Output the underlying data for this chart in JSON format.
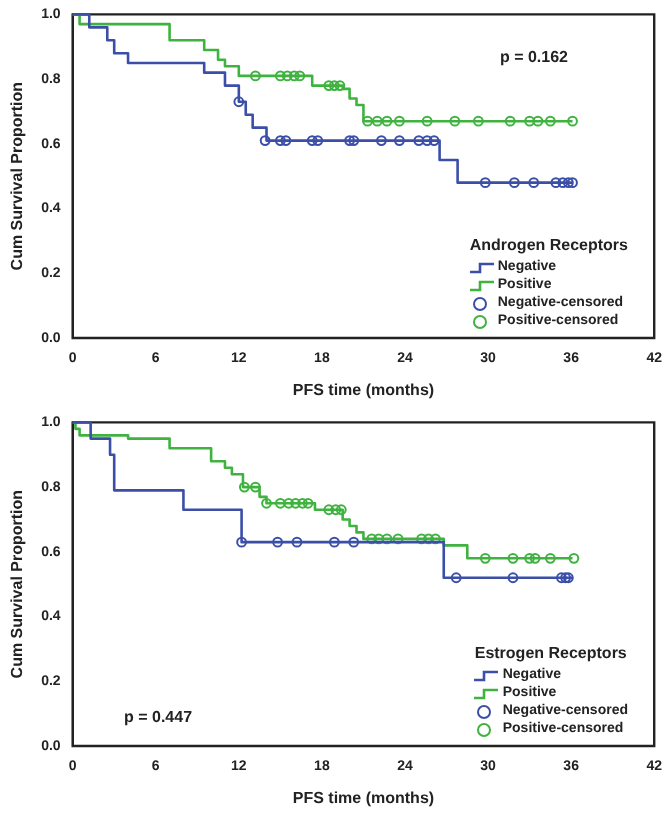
{
  "chart_data": [
    {
      "type": "step",
      "xlabel": "PFS time (months)",
      "ylabel": "Cum Survival Proportion",
      "legend_title": "Androgen Receptors",
      "legend": "bottom right",
      "annotations": [
        "p = 0.162"
      ],
      "xlim": [
        0,
        42
      ],
      "xticks": [
        0,
        6,
        12,
        18,
        24,
        30,
        36,
        42
      ],
      "ylim": [
        0,
        1
      ],
      "yticks": [
        {
          "value": 0,
          "label": "0.0"
        },
        {
          "value": 0.2,
          "label": "0.2"
        },
        {
          "value": 0.4,
          "label": "0.4"
        },
        {
          "value": 0.6,
          "label": "0.6"
        },
        {
          "value": 0.8,
          "label": "0.8"
        },
        {
          "value": 1,
          "label": "1.0"
        }
      ],
      "grid": false,
      "series": [
        {
          "name": "Negative",
          "color": "#3b4fa8",
          "x": [
            0,
            1.2,
            2.5,
            3,
            4,
            9.5,
            11,
            12,
            12.5,
            13,
            14,
            26.5,
            27.8,
            36.1
          ],
          "values": [
            1,
            0.96,
            0.92,
            0.88,
            0.85,
            0.82,
            0.78,
            0.73,
            0.69,
            0.65,
            0.61,
            0.55,
            0.48,
            0.48
          ]
        },
        {
          "name": "Positive",
          "color": "#3fb23f",
          "x": [
            0,
            0.5,
            7,
            9.5,
            10.5,
            11,
            12,
            17.3,
            19.5,
            20,
            20.5,
            21,
            36.1
          ],
          "values": [
            1,
            0.97,
            0.92,
            0.89,
            0.86,
            0.84,
            0.81,
            0.78,
            0.77,
            0.74,
            0.72,
            0.67,
            0.67
          ]
        },
        {
          "name": "Negative-censored",
          "type": "scatter",
          "marker": "circle",
          "color": "#3b4fa8",
          "x": [
            12,
            13.9,
            15,
            15.4,
            17.3,
            17.7,
            20,
            20.3,
            22.3,
            23.6,
            25,
            25.6,
            26.1,
            29.8,
            31.9,
            33.3,
            34.9,
            35.4,
            35.8,
            36.1
          ],
          "values": [
            0.73,
            0.61,
            0.61,
            0.61,
            0.61,
            0.61,
            0.61,
            0.61,
            0.61,
            0.61,
            0.61,
            0.61,
            0.61,
            0.48,
            0.48,
            0.48,
            0.48,
            0.48,
            0.48,
            0.48
          ]
        },
        {
          "name": "Positive-censored",
          "type": "scatter",
          "marker": "circle",
          "color": "#3fb23f",
          "x": [
            13.2,
            15,
            15.5,
            16,
            16.4,
            18.5,
            18.9,
            19.3,
            21.3,
            22,
            22.7,
            23.6,
            25.6,
            27.6,
            29.3,
            31.6,
            33,
            33.6,
            34.5,
            36.1
          ],
          "values": [
            0.81,
            0.81,
            0.81,
            0.81,
            0.81,
            0.78,
            0.78,
            0.78,
            0.67,
            0.67,
            0.67,
            0.67,
            0.67,
            0.67,
            0.67,
            0.67,
            0.67,
            0.67,
            0.67,
            0.67
          ]
        }
      ]
    },
    {
      "type": "step",
      "xlabel": "PFS time (months)",
      "ylabel": "Cum Survival Proportion",
      "legend_title": "Estrogen Receptors",
      "legend": "bottom right",
      "annotations": [
        "p = 0.447"
      ],
      "xlim": [
        0,
        42
      ],
      "xticks": [
        0,
        6,
        12,
        18,
        24,
        30,
        36,
        42
      ],
      "ylim": [
        0,
        1
      ],
      "yticks": [
        {
          "value": 0,
          "label": "0.0"
        },
        {
          "value": 0.2,
          "label": "0.2"
        },
        {
          "value": 0.4,
          "label": "0.4"
        },
        {
          "value": 0.6,
          "label": "0.6"
        },
        {
          "value": 0.8,
          "label": "0.8"
        },
        {
          "value": 1,
          "label": "1.0"
        }
      ],
      "grid": false,
      "series": [
        {
          "name": "Negative",
          "color": "#3b4fa8",
          "x": [
            0,
            1.3,
            2.7,
            3,
            8,
            12.2,
            26.8,
            36.1
          ],
          "values": [
            1,
            0.95,
            0.9,
            0.79,
            0.73,
            0.63,
            0.52,
            0.52
          ]
        },
        {
          "name": "Positive",
          "color": "#3fb23f",
          "x": [
            0,
            0.2,
            0.5,
            4,
            7,
            10,
            11,
            11.5,
            12.3,
            13.5,
            14,
            17.5,
            19.5,
            20,
            20.5,
            21,
            26.8,
            28.5,
            36.1
          ],
          "values": [
            1,
            0.98,
            0.96,
            0.95,
            0.92,
            0.88,
            0.86,
            0.84,
            0.8,
            0.77,
            0.75,
            0.73,
            0.7,
            0.68,
            0.66,
            0.64,
            0.62,
            0.58,
            0.58
          ]
        },
        {
          "name": "Negative-censored",
          "type": "scatter",
          "marker": "circle",
          "color": "#3b4fa8",
          "x": [
            12.2,
            14.8,
            16.2,
            18.9,
            20.3,
            27.7,
            31.8,
            35.3,
            35.6,
            35.8
          ],
          "values": [
            0.63,
            0.63,
            0.63,
            0.63,
            0.63,
            0.52,
            0.52,
            0.52,
            0.52,
            0.52
          ]
        },
        {
          "name": "Positive-censored",
          "type": "scatter",
          "marker": "circle",
          "color": "#3fb23f",
          "x": [
            12.4,
            13.2,
            14,
            15,
            15.6,
            16.1,
            16.6,
            17,
            18.5,
            19,
            19.4,
            21.6,
            22.1,
            22.7,
            23.5,
            25.2,
            25.7,
            26.2,
            29.8,
            31.8,
            33,
            33.4,
            34.5,
            36.2
          ],
          "values": [
            0.8,
            0.8,
            0.75,
            0.75,
            0.75,
            0.75,
            0.75,
            0.75,
            0.73,
            0.73,
            0.73,
            0.64,
            0.64,
            0.64,
            0.64,
            0.64,
            0.64,
            0.64,
            0.58,
            0.58,
            0.58,
            0.58,
            0.58,
            0.58
          ]
        }
      ]
    }
  ]
}
